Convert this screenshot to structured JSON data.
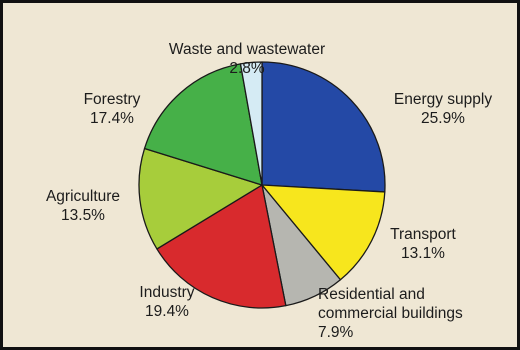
{
  "chart_data": {
    "type": "pie",
    "title": "",
    "start": "12 o'clock",
    "direction": "clockwise",
    "legend": "none",
    "slices": [
      {
        "name": "Energy supply",
        "pct_label": "25.9%",
        "value": 25.9,
        "color": "#2449a6"
      },
      {
        "name": "Transport",
        "pct_label": "13.1%",
        "value": 13.1,
        "color": "#f7e61d"
      },
      {
        "name": "Residential and commercial buildings",
        "name_lines": [
          "Residential and",
          "commercial buildings"
        ],
        "pct_label": "7.9%",
        "value": 7.9,
        "color": "#b6b6b0"
      },
      {
        "name": "Industry",
        "pct_label": "19.4%",
        "value": 19.4,
        "color": "#d82a2d"
      },
      {
        "name": "Agriculture",
        "pct_label": "13.5%",
        "value": 13.5,
        "color": "#a7cd3b"
      },
      {
        "name": "Forestry",
        "pct_label": "17.4%",
        "value": 17.4,
        "color": "#46b048"
      },
      {
        "name": "Waste and wastewater",
        "pct_label": "2.8%",
        "value": 2.8,
        "color": "#d5ebf4"
      }
    ]
  }
}
